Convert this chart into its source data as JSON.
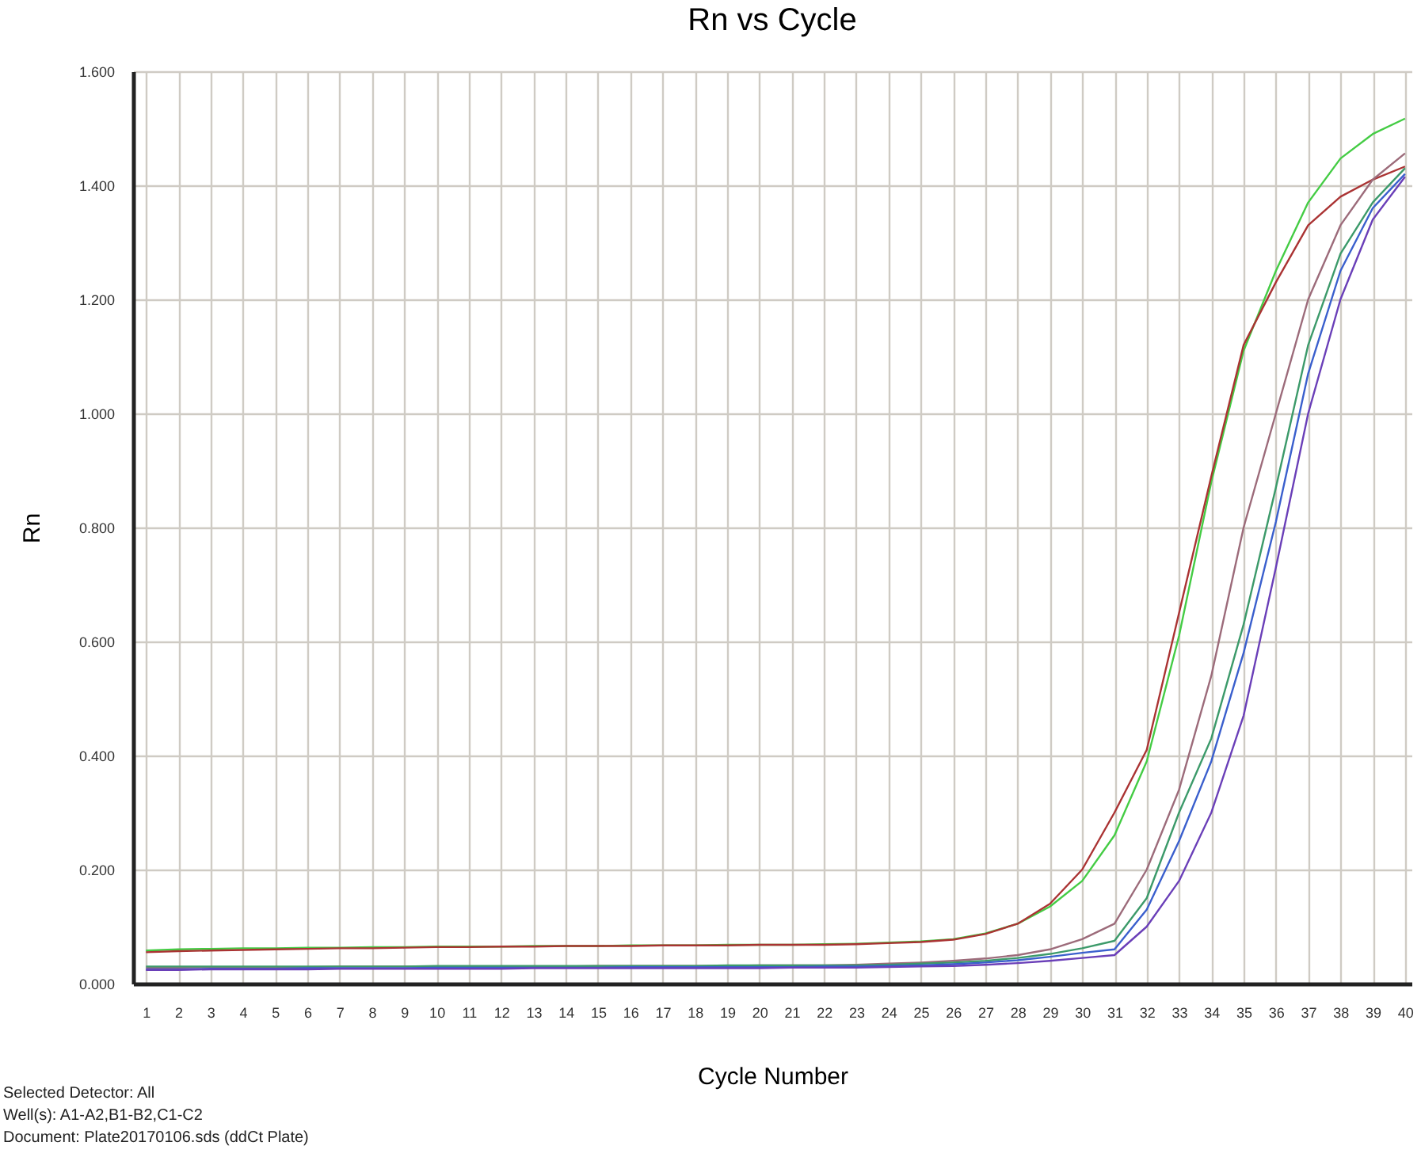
{
  "chart_data": {
    "type": "line",
    "title": "Rn vs Cycle",
    "xlabel": "Cycle Number",
    "ylabel": "Rn",
    "annotations": [
      "Selected Detector: All",
      "Well(s): A1-A2,B1-B2,C1-C2",
      "Document: Plate20170106.sds (ddCt Plate)"
    ],
    "x": [
      1,
      2,
      3,
      4,
      5,
      6,
      7,
      8,
      9,
      10,
      11,
      12,
      13,
      14,
      15,
      16,
      17,
      18,
      19,
      20,
      21,
      22,
      23,
      24,
      25,
      26,
      27,
      28,
      29,
      30,
      31,
      32,
      33,
      34,
      35,
      36,
      37,
      38,
      39,
      40
    ],
    "xlim": [
      0.6,
      40.2
    ],
    "xticks": [
      1,
      2,
      3,
      4,
      5,
      6,
      7,
      8,
      9,
      10,
      11,
      12,
      13,
      14,
      15,
      16,
      17,
      18,
      19,
      20,
      21,
      22,
      23,
      24,
      25,
      26,
      27,
      28,
      29,
      30,
      31,
      32,
      33,
      34,
      35,
      36,
      37,
      38,
      39,
      40
    ],
    "ylim": [
      0,
      1.6
    ],
    "yticks": [
      {
        "value": 0,
        "label": "0.000"
      },
      {
        "value": 0.2,
        "label": "0.200"
      },
      {
        "value": 0.4,
        "label": "0.400"
      },
      {
        "value": 0.6,
        "label": "0.600"
      },
      {
        "value": 0.8,
        "label": "0.800"
      },
      {
        "value": 1.0,
        "label": "1.000"
      },
      {
        "value": 1.2,
        "label": "1.200"
      },
      {
        "value": 1.4,
        "label": "1.400"
      },
      {
        "value": 1.6,
        "label": "1.600"
      }
    ],
    "grid": true,
    "series": [
      {
        "color": "#44cc44",
        "values": [
          0.058,
          0.06,
          0.061,
          0.062,
          0.062,
          0.063,
          0.063,
          0.064,
          0.064,
          0.065,
          0.065,
          0.065,
          0.066,
          0.066,
          0.066,
          0.067,
          0.067,
          0.067,
          0.068,
          0.068,
          0.068,
          0.069,
          0.07,
          0.072,
          0.074,
          0.078,
          0.088,
          0.105,
          0.135,
          0.18,
          0.26,
          0.39,
          0.61,
          0.88,
          1.11,
          1.25,
          1.37,
          1.447,
          1.49,
          1.517
        ]
      },
      {
        "color": "#aa3333",
        "values": [
          0.055,
          0.057,
          0.058,
          0.059,
          0.06,
          0.061,
          0.062,
          0.062,
          0.063,
          0.064,
          0.064,
          0.065,
          0.065,
          0.066,
          0.066,
          0.066,
          0.067,
          0.067,
          0.067,
          0.068,
          0.068,
          0.068,
          0.069,
          0.071,
          0.073,
          0.077,
          0.087,
          0.105,
          0.14,
          0.2,
          0.3,
          0.41,
          0.65,
          0.89,
          1.12,
          1.23,
          1.33,
          1.38,
          1.41,
          1.433
        ]
      },
      {
        "color": "#9c6b7a",
        "values": [
          0.028,
          0.028,
          0.029,
          0.029,
          0.029,
          0.029,
          0.03,
          0.03,
          0.03,
          0.03,
          0.03,
          0.03,
          0.03,
          0.03,
          0.031,
          0.031,
          0.031,
          0.031,
          0.031,
          0.032,
          0.032,
          0.032,
          0.033,
          0.035,
          0.037,
          0.04,
          0.044,
          0.05,
          0.06,
          0.078,
          0.105,
          0.2,
          0.34,
          0.54,
          0.8,
          1.0,
          1.2,
          1.33,
          1.41,
          1.456
        ]
      },
      {
        "color": "#3c9a6a",
        "values": [
          0.03,
          0.03,
          0.03,
          0.03,
          0.03,
          0.03,
          0.03,
          0.03,
          0.03,
          0.031,
          0.031,
          0.031,
          0.031,
          0.031,
          0.031,
          0.031,
          0.031,
          0.031,
          0.032,
          0.032,
          0.032,
          0.032,
          0.032,
          0.033,
          0.035,
          0.037,
          0.04,
          0.045,
          0.052,
          0.062,
          0.075,
          0.15,
          0.3,
          0.43,
          0.63,
          0.87,
          1.12,
          1.28,
          1.37,
          1.43
        ]
      },
      {
        "color": "#3a5fcd",
        "values": [
          0.025,
          0.025,
          0.026,
          0.026,
          0.026,
          0.027,
          0.027,
          0.027,
          0.027,
          0.028,
          0.028,
          0.028,
          0.028,
          0.028,
          0.028,
          0.029,
          0.029,
          0.029,
          0.029,
          0.029,
          0.029,
          0.03,
          0.03,
          0.031,
          0.032,
          0.034,
          0.037,
          0.041,
          0.047,
          0.054,
          0.06,
          0.13,
          0.25,
          0.39,
          0.58,
          0.81,
          1.07,
          1.25,
          1.36,
          1.42
        ]
      },
      {
        "color": "#6a3fb8",
        "values": [
          0.024,
          0.024,
          0.025,
          0.025,
          0.025,
          0.025,
          0.026,
          0.026,
          0.026,
          0.026,
          0.026,
          0.026,
          0.027,
          0.027,
          0.027,
          0.027,
          0.027,
          0.027,
          0.027,
          0.027,
          0.028,
          0.028,
          0.028,
          0.029,
          0.03,
          0.031,
          0.033,
          0.036,
          0.04,
          0.045,
          0.05,
          0.1,
          0.18,
          0.3,
          0.47,
          0.73,
          1.0,
          1.2,
          1.34,
          1.415
        ]
      }
    ]
  }
}
